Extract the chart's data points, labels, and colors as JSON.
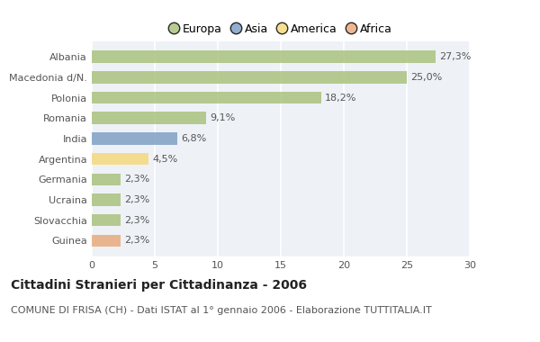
{
  "countries": [
    "Albania",
    "Macedonia d/N.",
    "Polonia",
    "Romania",
    "India",
    "Argentina",
    "Germania",
    "Ucraina",
    "Slovacchia",
    "Guinea"
  ],
  "values": [
    27.3,
    25.0,
    18.2,
    9.1,
    6.8,
    4.5,
    2.3,
    2.3,
    2.3,
    2.3
  ],
  "labels": [
    "27,3%",
    "25,0%",
    "18,2%",
    "9,1%",
    "6,8%",
    "4,5%",
    "2,3%",
    "2,3%",
    "2,3%",
    "2,3%"
  ],
  "bar_colors": [
    "#a8c07a",
    "#a8c07a",
    "#a8c07a",
    "#a8c07a",
    "#7b9dc4",
    "#f5d87a",
    "#a8c07a",
    "#a8c07a",
    "#a8c07a",
    "#e8a87a"
  ],
  "legend_labels": [
    "Europa",
    "Asia",
    "America",
    "Africa"
  ],
  "legend_colors": [
    "#a8c07a",
    "#7b9dc4",
    "#f5d87a",
    "#e8a87a"
  ],
  "xlim": [
    0,
    30
  ],
  "xticks": [
    0,
    5,
    10,
    15,
    20,
    25,
    30
  ],
  "title": "Cittadini Stranieri per Cittadinanza - 2006",
  "subtitle": "COMUNE DI FRISA (CH) - Dati ISTAT al 1° gennaio 2006 - Elaborazione TUTTITALIA.IT",
  "bg_color": "#ffffff",
  "plot_bg_color": "#eef2f7",
  "bar_alpha": 0.82,
  "title_fontsize": 10,
  "subtitle_fontsize": 8,
  "label_fontsize": 8,
  "tick_fontsize": 8,
  "legend_fontsize": 9
}
